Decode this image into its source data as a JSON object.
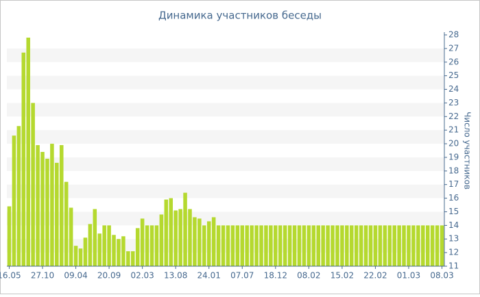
{
  "chart_data": {
    "type": "bar",
    "title": "Динамика участников беседы",
    "y_label": "Число участников",
    "categories": [
      "16.05",
      null,
      null,
      null,
      null,
      null,
      null,
      "27.10",
      null,
      null,
      null,
      null,
      null,
      null,
      "09.04",
      null,
      null,
      null,
      null,
      null,
      null,
      "20.09",
      null,
      null,
      null,
      null,
      null,
      null,
      "02.03",
      null,
      null,
      null,
      null,
      null,
      null,
      "13.08",
      null,
      null,
      null,
      null,
      null,
      null,
      "24.01",
      null,
      null,
      null,
      null,
      null,
      null,
      "07.07",
      null,
      null,
      null,
      null,
      null,
      null,
      "18.12",
      null,
      null,
      null,
      null,
      null,
      null,
      "08.02",
      null,
      null,
      null,
      null,
      null,
      null,
      "15.02",
      null,
      null,
      null,
      null,
      null,
      null,
      "22.02",
      null,
      null,
      null,
      null,
      null,
      null,
      "01.03",
      null,
      null,
      null,
      null,
      null,
      null,
      "08.03"
    ],
    "values": [
      15.4,
      20.6,
      21.3,
      26.7,
      27.8,
      23,
      19.9,
      19.4,
      18.9,
      20,
      18.6,
      19.9,
      17.2,
      15.3,
      12.5,
      12.3,
      13.1,
      14.1,
      15.2,
      13.4,
      14,
      14,
      13.3,
      13,
      13.2,
      12.1,
      12.1,
      13.8,
      14.5,
      14,
      14,
      14,
      14.8,
      15.9,
      16,
      15.1,
      15.2,
      16.4,
      15.2,
      14.6,
      14.5,
      14,
      14.3,
      14.6,
      14,
      14,
      14,
      14,
      14,
      14,
      14,
      14,
      14,
      14,
      14,
      14,
      14,
      14,
      14,
      14,
      14,
      14,
      14,
      14,
      14,
      14,
      14,
      14,
      14,
      14,
      14,
      14,
      14,
      14,
      14,
      14,
      14,
      14,
      14,
      14,
      14,
      14,
      14,
      14,
      14,
      14,
      14,
      14,
      14,
      14,
      14,
      14
    ],
    "color": "#b5d92f",
    "ylim": [
      11,
      28
    ],
    "yticks": [
      11,
      12,
      13,
      14,
      15,
      16,
      17,
      18,
      19,
      20,
      21,
      22,
      23,
      24,
      25,
      26,
      27,
      28
    ],
    "grid": true
  }
}
